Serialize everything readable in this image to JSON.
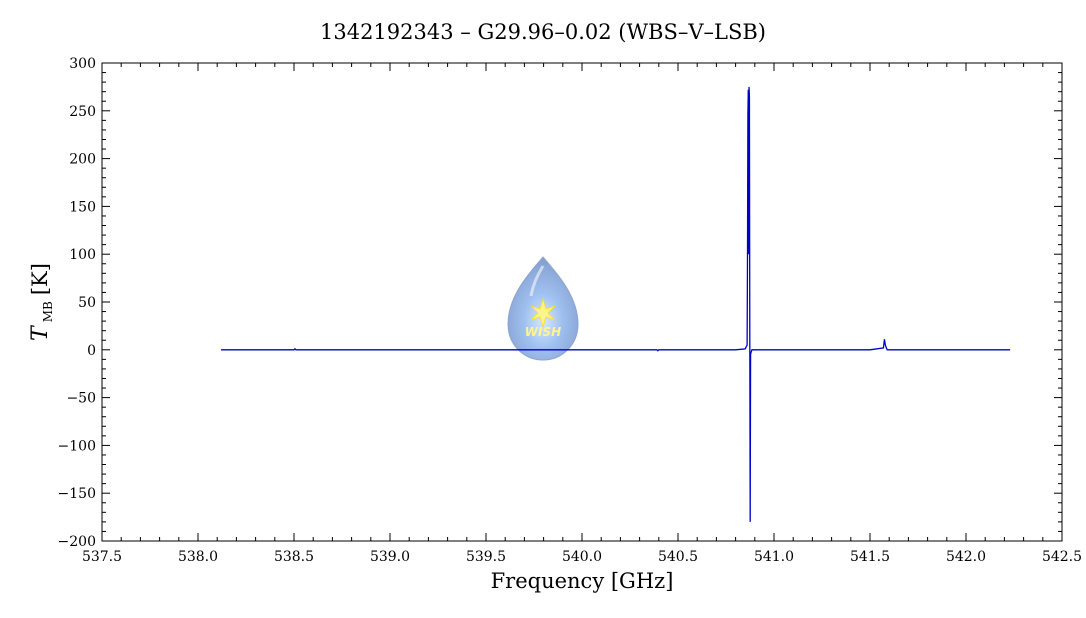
{
  "chart_data": {
    "type": "line",
    "title": "1342192343 – G29.96–0.02 (WBS–V–LSB)",
    "xlabel": "Frequency [GHz]",
    "ylabel": {
      "symbol": "T",
      "subscript": "MB",
      "unit": "[K]"
    },
    "xlim": [
      537.5,
      542.5
    ],
    "ylim": [
      -200,
      300
    ],
    "xticks": [
      537.5,
      538.0,
      538.5,
      539.0,
      539.5,
      540.0,
      540.5,
      541.0,
      541.5,
      542.0,
      542.5
    ],
    "yticks": [
      -200,
      -150,
      -100,
      -50,
      0,
      50,
      100,
      150,
      200,
      250,
      300
    ],
    "xtick_labels": [
      "537.5",
      "538.0",
      "538.5",
      "539.0",
      "539.5",
      "540.0",
      "540.5",
      "541.0",
      "541.5",
      "542.0",
      "542.5"
    ],
    "ytick_labels": [
      "−200",
      "−150",
      "−100",
      "−50",
      "0",
      "50",
      "100",
      "150",
      "200",
      "250",
      "300"
    ],
    "grid": false,
    "series": [
      {
        "color": "#0000cc",
        "x": [
          538.12,
          538.5,
          538.505,
          538.51,
          540.0,
          540.39,
          540.395,
          540.4,
          540.8,
          540.85,
          540.86,
          540.862,
          540.864,
          540.866,
          540.868,
          540.87,
          540.872,
          540.874,
          540.876,
          540.878,
          540.88,
          540.885,
          540.89,
          540.9,
          541.0,
          541.5,
          541.57,
          541.575,
          541.58,
          541.585,
          541.59,
          541.6,
          542.0,
          542.23
        ],
        "y": [
          0,
          0,
          1,
          0,
          0,
          0,
          -1,
          0,
          0,
          1,
          5,
          100,
          245,
          272,
          100,
          275,
          265,
          10,
          -180,
          -5,
          -3,
          0,
          0,
          0,
          0,
          0,
          2,
          11,
          5,
          2,
          0,
          0,
          0,
          0
        ]
      }
    ]
  },
  "watermark": {
    "text": "WISH"
  }
}
